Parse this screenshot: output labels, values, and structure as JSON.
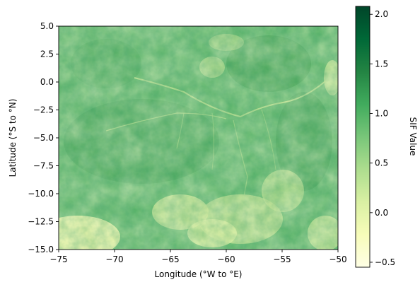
{
  "chart_data": {
    "type": "heatmap",
    "title": "",
    "xlabel": "Longitude (°W to °E)",
    "ylabel": "Latitude (°S to °N)",
    "xlim": [
      -75,
      -50
    ],
    "ylim": [
      -15,
      5
    ],
    "xticks": [
      -75,
      -70,
      -65,
      -60,
      -55,
      -50
    ],
    "xtick_labels": [
      "−75",
      "−70",
      "−65",
      "−60",
      "−55",
      "−50"
    ],
    "yticks": [
      5.0,
      2.5,
      0.0,
      -2.5,
      -5.0,
      -7.5,
      -10.0,
      -12.5,
      -15.0
    ],
    "ytick_labels": [
      "5.0",
      "2.5",
      "0.0",
      "−2.5",
      "−5.0",
      "−7.5",
      "−10.0",
      "−12.5",
      "−15.0"
    ],
    "colorbar": {
      "label": "SIF Value",
      "range": [
        -0.55,
        2.08
      ],
      "ticks": [
        2.0,
        1.5,
        1.0,
        0.5,
        0.0,
        -0.5
      ],
      "tick_labels": [
        "2.0",
        "1.5",
        "1.0",
        "0.5",
        "0.0",
        "−0.5"
      ],
      "colormap": "YlGn",
      "colors": [
        "#ffffe5",
        "#f7fcb9",
        "#d9f0a3",
        "#addd8e",
        "#78c679",
        "#41ab5d",
        "#238443",
        "#006837",
        "#004529"
      ]
    }
  }
}
